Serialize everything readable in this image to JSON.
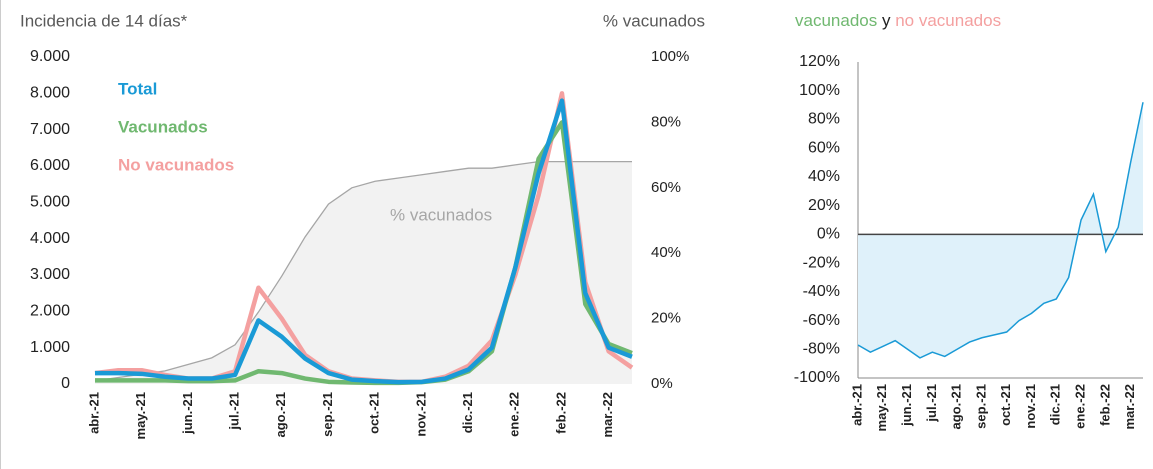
{
  "chart_data": [
    {
      "type": "line",
      "ylabel": "Incidencia de 14 días*",
      "y2label": "% vacunados",
      "categories": [
        "abr.-21",
        null,
        "may.-21",
        null,
        "jun.-21",
        null,
        "jul.-21",
        null,
        "ago.-21",
        null,
        "sep.-21",
        null,
        "oct.-21",
        null,
        "nov.-21",
        null,
        "dic.-21",
        null,
        "ene.-22",
        null,
        "feb.-22",
        null,
        "mar.-22",
        null
      ],
      "series": [
        {
          "name": "% vacunados",
          "color": "#a6a6a6",
          "axis": "y2",
          "area": true,
          "values": [
            1,
            2,
            3,
            4,
            6,
            8,
            12,
            22,
            33,
            45,
            55,
            60,
            62,
            63,
            64,
            65,
            66,
            66,
            67,
            68,
            68,
            68,
            68,
            68
          ]
        },
        {
          "name": "No vacunados",
          "color": "#f4a0a0",
          "values": [
            300,
            380,
            380,
            250,
            150,
            150,
            350,
            2650,
            1800,
            800,
            350,
            150,
            100,
            60,
            60,
            200,
            500,
            1200,
            3000,
            5200,
            8000,
            2800,
            900,
            450
          ]
        },
        {
          "name": "Vacunados",
          "color": "#70b870",
          "values": [
            100,
            100,
            100,
            100,
            80,
            80,
            100,
            350,
            300,
            150,
            60,
            40,
            30,
            30,
            50,
            120,
            350,
            900,
            3200,
            6200,
            7200,
            2200,
            1100,
            850
          ]
        },
        {
          "name": "Total",
          "color": "#1a9ad6",
          "values": [
            300,
            300,
            280,
            200,
            150,
            150,
            250,
            1750,
            1300,
            700,
            300,
            120,
            80,
            50,
            60,
            150,
            400,
            1000,
            3200,
            5800,
            7800,
            2500,
            1000,
            750
          ]
        }
      ],
      "ylim": [
        0,
        9000
      ],
      "yticks": [
        0,
        {
          "value": 1000,
          "label": "1.000"
        },
        {
          "value": 2000,
          "label": "2.000"
        },
        {
          "value": 3000,
          "label": "3.000"
        },
        {
          "value": 4000,
          "label": "4.000"
        },
        {
          "value": 5000,
          "label": "5.000"
        },
        {
          "value": 6000,
          "label": "6.000"
        },
        {
          "value": 7000,
          "label": "7.000"
        },
        {
          "value": 8000,
          "label": "8.000"
        },
        {
          "value": 9000,
          "label": "9.000"
        }
      ],
      "y2lim": [
        0,
        100
      ],
      "y2ticks": [
        {
          "value": 0,
          "label": "0%"
        },
        {
          "value": 20,
          "label": "20%"
        },
        {
          "value": 40,
          "label": "40%"
        },
        {
          "value": 60,
          "label": "60%"
        },
        {
          "value": 80,
          "label": "80%"
        },
        {
          "value": 100,
          "label": "100%"
        }
      ]
    },
    {
      "type": "area",
      "title_parts": [
        {
          "text": "vacunados",
          "color": "#70b870"
        },
        {
          "text": "y",
          "color": "#222222"
        },
        {
          "text": "no vacunados",
          "color": "#f4a0a0"
        }
      ],
      "categories": [
        "abr.-21",
        null,
        "may.-21",
        null,
        "jun.-21",
        null,
        "jul.-21",
        null,
        "ago.-21",
        null,
        "sep.-21",
        null,
        "oct.-21",
        null,
        "nov.-21",
        null,
        "dic.-21",
        null,
        "ene.-22",
        null,
        "feb.-22",
        null,
        "mar.-22",
        null
      ],
      "color": "#1a9ad6",
      "fill": "#dff1fa",
      "values": [
        -77,
        -82,
        -78,
        -74,
        -80,
        -86,
        -82,
        -85,
        -80,
        -75,
        -72,
        -70,
        -68,
        -60,
        -55,
        -48,
        -45,
        -30,
        10,
        28,
        -12,
        5,
        50,
        92
      ],
      "ylim": [
        -100,
        120
      ],
      "yticks": [
        {
          "value": -100,
          "label": "-100%"
        },
        {
          "value": -80,
          "label": "-80%"
        },
        {
          "value": -60,
          "label": "-60%"
        },
        {
          "value": -40,
          "label": "-40%"
        },
        {
          "value": -20,
          "label": "-20%"
        },
        {
          "value": 0,
          "label": "0%"
        },
        {
          "value": 20,
          "label": "20%"
        },
        {
          "value": 40,
          "label": "40%"
        },
        {
          "value": 60,
          "label": "60%"
        },
        {
          "value": 80,
          "label": "80%"
        },
        {
          "value": 100,
          "label": "100%"
        },
        {
          "value": 120,
          "label": "120%"
        }
      ]
    }
  ]
}
